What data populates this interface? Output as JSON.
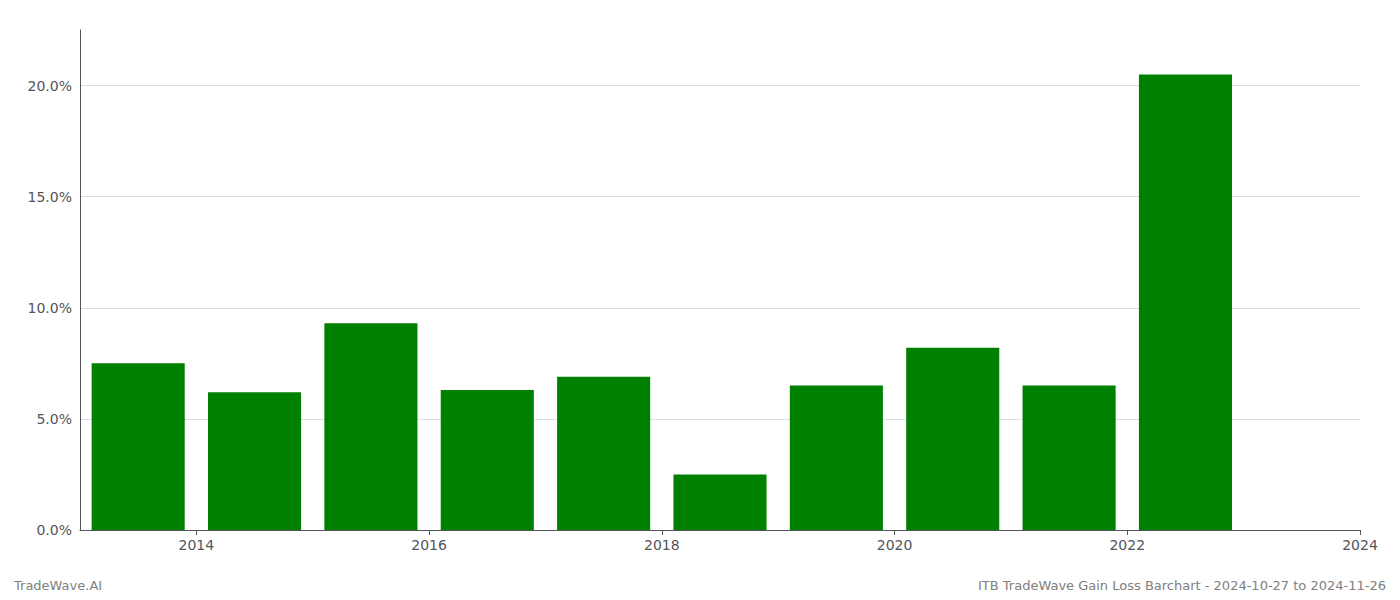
{
  "chart_data": {
    "type": "bar",
    "x": [
      2014,
      2015,
      2016,
      2017,
      2018,
      2019,
      2020,
      2021,
      2022,
      2023
    ],
    "values": [
      0.075,
      0.062,
      0.093,
      0.063,
      0.069,
      0.025,
      0.065,
      0.082,
      0.065,
      0.205
    ],
    "color": "#008000",
    "xlim": [
      2013.5,
      2024.5
    ],
    "xticks": [
      {
        "value": 2014.5,
        "label": "2014"
      },
      {
        "value": 2016.5,
        "label": "2016"
      },
      {
        "value": 2018.5,
        "label": "2018"
      },
      {
        "value": 2020.5,
        "label": "2020"
      },
      {
        "value": 2022.5,
        "label": "2022"
      },
      {
        "value": 2024.5,
        "label": "2024"
      }
    ],
    "ylim": [
      0,
      0.225
    ],
    "yticks": [
      {
        "value": 0.0,
        "label": "0.0%"
      },
      {
        "value": 0.05,
        "label": "5.0%"
      },
      {
        "value": 0.1,
        "label": "10.0%"
      },
      {
        "value": 0.15,
        "label": "15.0%"
      },
      {
        "value": 0.2,
        "label": "20.0%"
      }
    ],
    "grid": true,
    "annotations": [
      "TradeWave.AI",
      "ITB TradeWave Gain Loss Barchart - 2024-10-27 to 2024-11-26"
    ]
  }
}
